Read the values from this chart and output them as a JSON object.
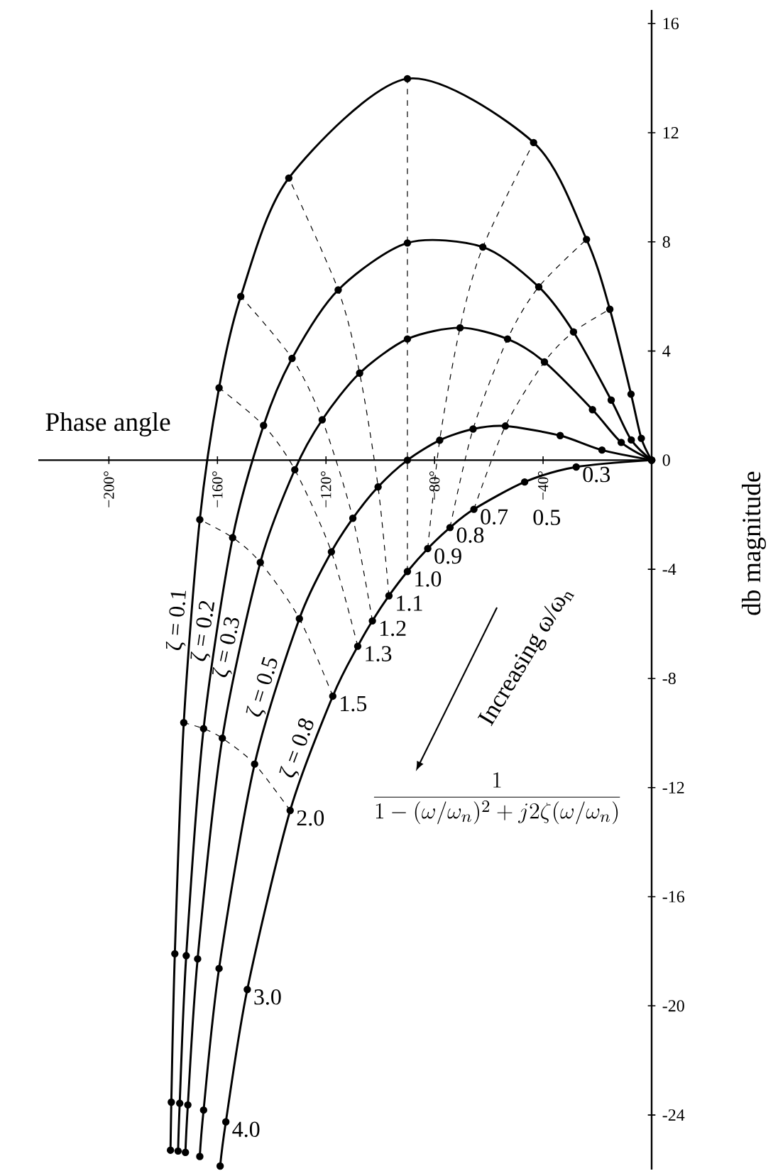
{
  "chart_data": {
    "type": "line",
    "xlabel": "Phase angle",
    "ylabel": "db magnitude",
    "xlim": [
      -226,
      0
    ],
    "ylim": [
      -26,
      16.5
    ],
    "xticks": [
      {
        "value": -200,
        "label": "−200°"
      },
      {
        "value": -160,
        "label": "−160°"
      },
      {
        "value": -120,
        "label": "−120°"
      },
      {
        "value": -80,
        "label": "−80°"
      },
      {
        "value": -40,
        "label": "−40°"
      }
    ],
    "yticks": [
      -24,
      -20,
      -16,
      -12,
      -8,
      -4,
      0,
      4,
      8,
      12,
      16
    ],
    "series": [
      {
        "name": "ζ = 0.1",
        "color": "#000000",
        "marker": "circle",
        "line_style": "solid",
        "x": [
          0,
          -3.8,
          -7.6,
          -15.4,
          -24.0,
          -43.5,
          -90,
          -133.7,
          -151.4,
          -159.4,
          -166.5,
          -172.4,
          -175.7,
          -177.0,
          -177.3
        ],
        "values": [
          0,
          0.8,
          2.42,
          5.53,
          8.09,
          11.64,
          13.98,
          10.34,
          6.0,
          2.65,
          -2.18,
          -9.62,
          -18.09,
          -23.53,
          -25.29
        ]
      },
      {
        "name": "ζ = 0.2",
        "color": "#000000",
        "marker": "circle",
        "line_style": "solid",
        "x": [
          0,
          -7.5,
          -14.9,
          -28.8,
          -41.6,
          -62.2,
          -90,
          -115.5,
          -132.5,
          -143.0,
          -154.4,
          -165.1,
          -171.5,
          -173.9,
          -174.5
        ],
        "values": [
          0,
          0.74,
          2.2,
          4.7,
          6.35,
          7.81,
          7.96,
          6.24,
          3.73,
          1.27,
          -2.84,
          -9.84,
          -18.16,
          -23.57,
          -25.32
        ]
      },
      {
        "name": "ζ = 0.3",
        "color": "#000000",
        "marker": "circle",
        "line_style": "solid",
        "x": [
          0,
          -11.2,
          -21.8,
          -39.5,
          -53.1,
          -70.6,
          -90,
          -107.6,
          -121.4,
          -131.5,
          -144.2,
          -158.2,
          -167.3,
          -170.9,
          -171.8
        ],
        "values": [
          0,
          0.65,
          1.85,
          3.6,
          4.44,
          4.85,
          4.44,
          3.19,
          1.48,
          -0.35,
          -3.75,
          -10.19,
          -18.28,
          -23.63,
          -25.37
        ]
      },
      {
        "name": "ζ = 0.5",
        "color": "#000000",
        "marker": "circle",
        "line_style": "solid",
        "x": [
          0,
          -18.3,
          -33.7,
          -53.9,
          -65.8,
          -78.1,
          -90,
          -100.8,
          -110.1,
          -118.0,
          -129.8,
          -146.3,
          -159.4,
          -165.1,
          -166.5
        ],
        "values": [
          0,
          0.37,
          0.9,
          1.25,
          1.14,
          0.73,
          0,
          -0.98,
          -2.13,
          -3.36,
          -5.81,
          -11.14,
          -18.63,
          -23.82,
          -25.52
        ]
      },
      {
        "name": "ζ = 0.8",
        "color": "#000000",
        "marker": "circle",
        "line_style": "solid",
        "x": [
          0,
          -27.8,
          -46.8,
          -65.5,
          -74.3,
          -82.5,
          -90,
          -96.8,
          -102.9,
          -108.3,
          -117.5,
          -133.2,
          -149.0,
          -156.9,
          -159.0
        ],
        "values": [
          0,
          -0.25,
          -0.8,
          -1.8,
          -2.47,
          -3.24,
          -4.08,
          -4.97,
          -5.89,
          -6.82,
          -8.65,
          -12.84,
          -19.4,
          -24.25,
          -25.87
        ]
      },
      {
        "color": "#000000",
        "marker": "none",
        "line_style": "dashed",
        "x": [
          -65.5,
          -53.9,
          -39.5,
          -28.8,
          -15.4
        ],
        "values": [
          -1.8,
          1.25,
          3.6,
          4.7,
          5.53
        ]
      },
      {
        "color": "#000000",
        "marker": "none",
        "line_style": "dashed",
        "x": [
          -74.3,
          -65.8,
          -53.1,
          -41.6,
          -24.0
        ],
        "values": [
          -2.47,
          1.14,
          4.44,
          6.35,
          8.09
        ]
      },
      {
        "color": "#000000",
        "marker": "none",
        "line_style": "dashed",
        "x": [
          -82.5,
          -78.1,
          -70.6,
          -62.2,
          -43.5
        ],
        "values": [
          -3.24,
          0.73,
          4.85,
          7.81,
          11.64
        ]
      },
      {
        "color": "#000000",
        "marker": "none",
        "line_style": "dashed",
        "x": [
          -90,
          -90,
          -90,
          -90,
          -90
        ],
        "values": [
          -4.08,
          0,
          4.44,
          7.96,
          13.98
        ]
      },
      {
        "color": "#000000",
        "marker": "none",
        "line_style": "dashed",
        "x": [
          -96.8,
          -100.8,
          -107.6,
          -115.5,
          -133.7
        ],
        "values": [
          -4.97,
          -0.98,
          3.19,
          6.24,
          10.34
        ]
      },
      {
        "color": "#000000",
        "marker": "none",
        "line_style": "dashed",
        "x": [
          -102.9,
          -110.1,
          -121.4,
          -132.5,
          -151.4
        ],
        "values": [
          -5.89,
          -2.13,
          1.48,
          3.73,
          6.0
        ]
      },
      {
        "color": "#000000",
        "marker": "none",
        "line_style": "dashed",
        "x": [
          -108.3,
          -118.0,
          -131.5,
          -143.0,
          -159.4
        ],
        "values": [
          -6.82,
          -3.36,
          -0.35,
          1.27,
          2.65
        ]
      },
      {
        "color": "#000000",
        "marker": "none",
        "line_style": "dashed",
        "x": [
          -117.5,
          -129.8,
          -144.2,
          -154.4,
          -166.5
        ],
        "values": [
          -8.65,
          -5.81,
          -3.75,
          -2.84,
          -2.18
        ]
      },
      {
        "color": "#000000",
        "marker": "none",
        "line_style": "dashed",
        "x": [
          -133.2,
          -146.3,
          -158.2,
          -165.1,
          -172.4
        ],
        "values": [
          -12.84,
          -11.14,
          -10.19,
          -9.84,
          -9.62
        ]
      }
    ],
    "annotations": [
      {
        "text": "0.3",
        "x": -27.8,
        "y": -0.25
      },
      {
        "text": "0.5",
        "x": -46.8,
        "y": -0.8
      },
      {
        "text": "0.7",
        "x": -65.5,
        "y": -1.8
      },
      {
        "text": "0.8",
        "x": -74.3,
        "y": -2.47
      },
      {
        "text": "0.9",
        "x": -82.5,
        "y": -3.24
      },
      {
        "text": "1.0",
        "x": -90,
        "y": -4.08
      },
      {
        "text": "1.1",
        "x": -96.8,
        "y": -4.97
      },
      {
        "text": "1.2",
        "x": -102.9,
        "y": -5.89
      },
      {
        "text": "1.3",
        "x": -108.3,
        "y": -6.82
      },
      {
        "text": "1.5",
        "x": -117.5,
        "y": -8.65
      },
      {
        "text": "2.0",
        "x": -133.2,
        "y": -12.84
      },
      {
        "text": "3.0",
        "x": -149.0,
        "y": -19.4
      },
      {
        "text": "4.0",
        "x": -156.9,
        "y": -24.25
      },
      "Increasing ω/ω$_{n}$",
      "\\frac{1}{1-(\\omega/\\omega_n)^2+j2\\zeta(\\omega/\\omega_n)}"
    ]
  }
}
